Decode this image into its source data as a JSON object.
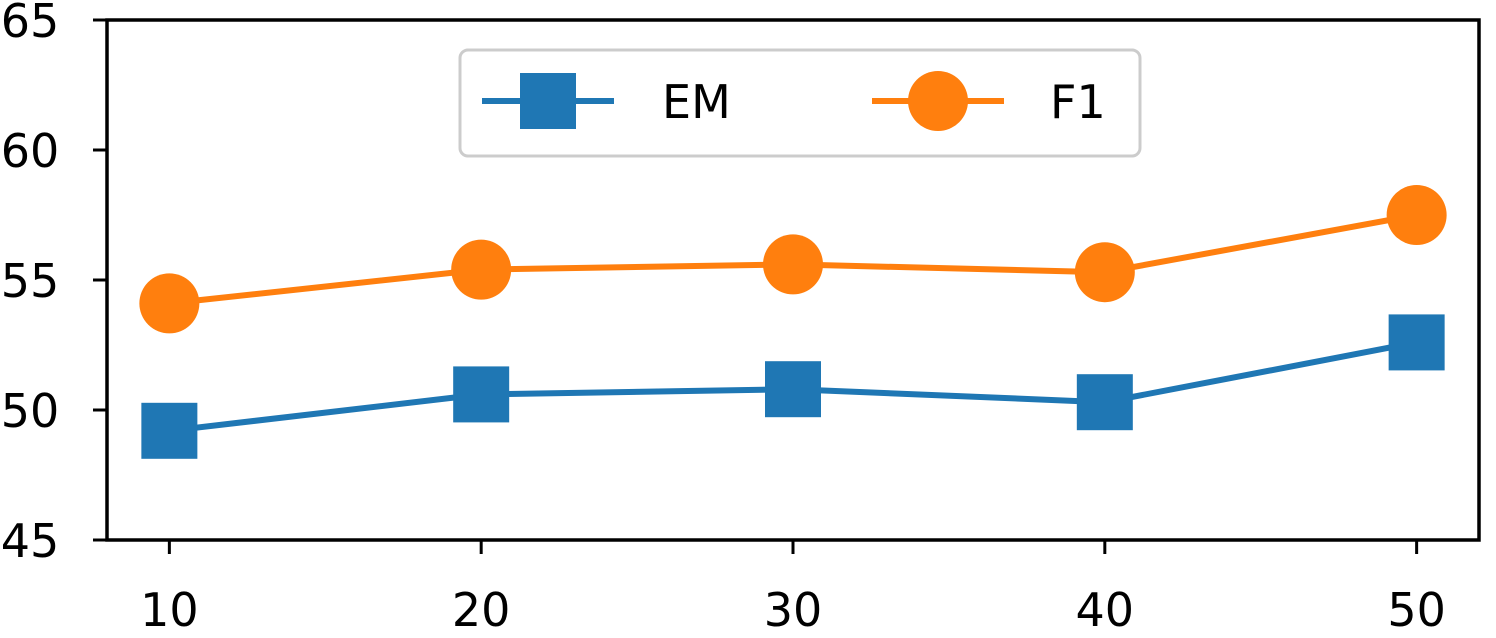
{
  "chart_data": {
    "type": "line",
    "title": "",
    "xlabel": "",
    "ylabel": "",
    "x": [
      10,
      20,
      30,
      40,
      50
    ],
    "xticks": [
      "10",
      "20",
      "30",
      "40",
      "50"
    ],
    "yticks": [
      "45",
      "50",
      "55",
      "60",
      "65"
    ],
    "ylim": [
      45,
      65
    ],
    "grid": false,
    "legend_position": "top-center",
    "series": [
      {
        "name": "EM",
        "values": [
          49.2,
          50.6,
          50.8,
          50.3,
          52.6
        ],
        "color": "#1f77b4",
        "marker": "square"
      },
      {
        "name": "F1",
        "values": [
          54.1,
          55.4,
          55.6,
          55.3,
          57.5
        ],
        "color": "#ff7f0e",
        "marker": "circle"
      }
    ]
  }
}
